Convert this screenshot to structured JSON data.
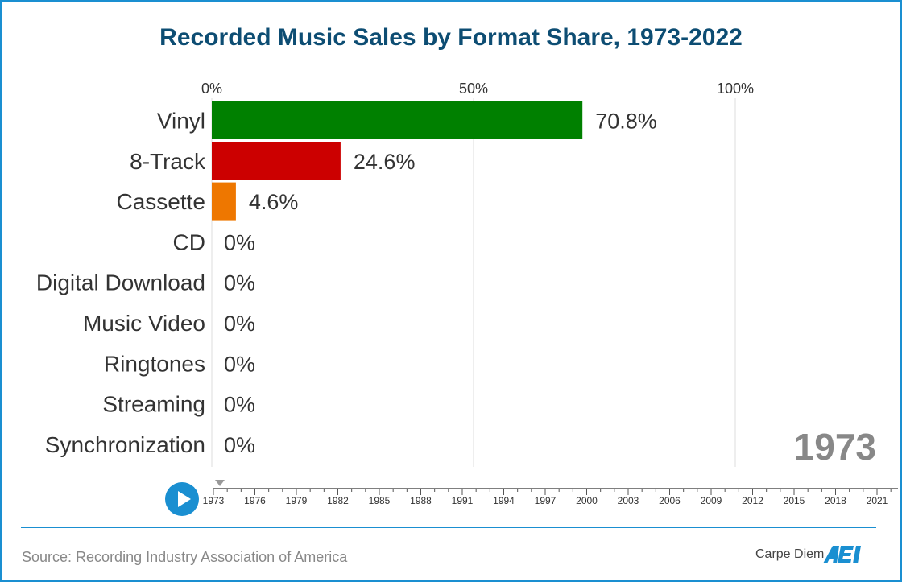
{
  "title": "Recorded Music Sales by Format Share, 1973-2022",
  "chart_data": {
    "type": "bar",
    "orientation": "horizontal",
    "title": "Recorded Music Sales by Format Share, 1973-2022",
    "categories": [
      "Vinyl",
      "8-Track",
      "Cassette",
      "CD",
      "Digital Download",
      "Music Video",
      "Ringtones",
      "Streaming",
      "Synchronization"
    ],
    "values": [
      70.8,
      24.6,
      4.6,
      0,
      0,
      0,
      0,
      0,
      0
    ],
    "value_labels": [
      "70.8%",
      "24.6%",
      "4.6%",
      "0%",
      "0%",
      "0%",
      "0%",
      "0%",
      "0%"
    ],
    "colors": [
      "#008000",
      "#cc0000",
      "#ee7700",
      "#1a8fd1",
      "#1a8fd1",
      "#1a8fd1",
      "#1a8fd1",
      "#1a8fd1",
      "#1a8fd1"
    ],
    "xlim": [
      0,
      100
    ],
    "x_ticks": [
      0,
      50,
      100
    ],
    "x_tick_labels": [
      "0%",
      "50%",
      "100%"
    ],
    "grid": true,
    "current_year": "1973"
  },
  "timeline": {
    "start": 1973,
    "end": 2022,
    "current": 1973,
    "labels": [
      "1973",
      "1976",
      "1979",
      "1982",
      "1985",
      "1988",
      "1991",
      "1994",
      "1997",
      "2000",
      "2003",
      "2006",
      "2009",
      "2012",
      "2015",
      "2018",
      "2021"
    ]
  },
  "footer": {
    "source_prefix": "Source: ",
    "source_link": "Recording Industry Association of America",
    "brand": "Carpe Diem",
    "logo": "AEI"
  }
}
